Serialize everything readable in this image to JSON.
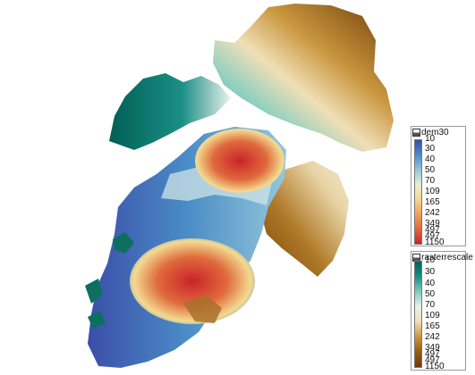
{
  "map": {
    "colors": {
      "dem_ramp": [
        "#3b4ea8",
        "#4a8cc6",
        "#93c7db",
        "#e7efd6",
        "#f3d990",
        "#f0a25a",
        "#e06a3c",
        "#c9232a"
      ],
      "rescale_ramp": [
        "#005f55",
        "#1b8f86",
        "#7fcdc2",
        "#e9f1ec",
        "#f0dfb6",
        "#c9963e",
        "#9a5a14",
        "#6b3a07"
      ]
    }
  },
  "legend_dem": {
    "title": "dem30",
    "icon": "layer-icon",
    "labels": [
      "10",
      "30",
      "40",
      "50",
      "70",
      "109",
      "165",
      "242",
      "349",
      "497",
      "497",
      "1150"
    ]
  },
  "legend_rescale": {
    "title": "rasterrescale",
    "icon": "layer-icon",
    "labels": [
      "10",
      "30",
      "40",
      "50",
      "70",
      "109",
      "165",
      "242",
      "349",
      "497",
      "497",
      "1150"
    ]
  }
}
